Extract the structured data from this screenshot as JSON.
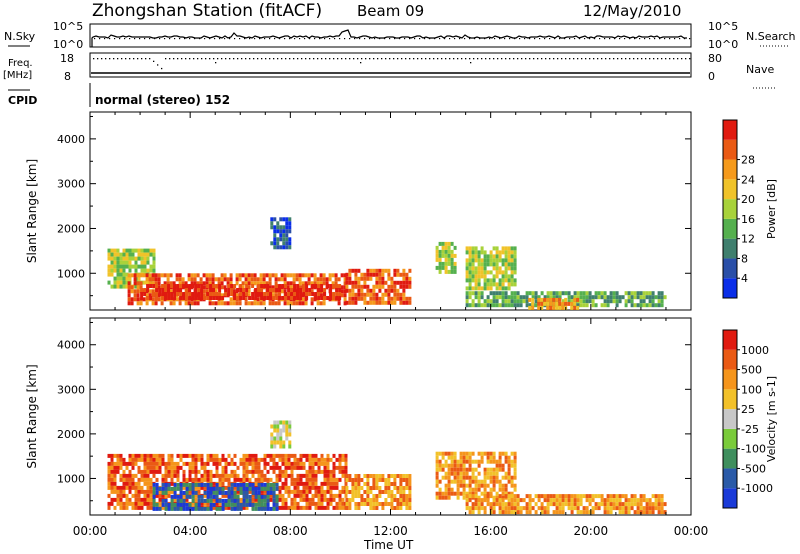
{
  "header": {
    "station": "Zhongshan Station (fitACF)",
    "beam": "Beam 09",
    "date": "12/May/2010"
  },
  "strip": {
    "nsky_label": "N.Sky",
    "nsky_ticks": [
      "10^5",
      "10^0"
    ],
    "nsearch_label": "N.Search",
    "nsearch_ticks": [
      "10^5",
      "10^0"
    ],
    "freq_label": "Freq.",
    "freq_unit": "[MHz]",
    "freq_ticks": [
      "18",
      "8"
    ],
    "nave_label": "Nave",
    "nave_ticks": [
      "80",
      "0"
    ],
    "cpid_label": "CPID",
    "cpid_value": "normal (stereo) 152"
  },
  "chart_data": [
    {
      "type": "heatmap",
      "name": "power",
      "ylabel": "Slant Range [km]",
      "yticks": [
        1000,
        2000,
        3000,
        4000
      ],
      "ylim": [
        180,
        4600
      ],
      "xlim": [
        0,
        24
      ],
      "colorbar": {
        "label": "Power [dB]",
        "ticks": [
          "4",
          "8",
          "12",
          "16",
          "20",
          "24",
          "28"
        ],
        "colors": [
          "#0a2ee8",
          "#2a4fa8",
          "#3f7f6e",
          "#55b04e",
          "#a8d23a",
          "#f0c32a",
          "#f59a1c",
          "#ea5a14",
          "#e01a10"
        ]
      },
      "echo_regions": [
        {
          "t0": 0.7,
          "t1": 2.6,
          "r0": 700,
          "r1": 1550,
          "level": 4
        },
        {
          "t0": 1.5,
          "t1": 10.2,
          "r0": 330,
          "r1": 1000,
          "level": 7
        },
        {
          "t0": 2.0,
          "t1": 10.0,
          "r0": 420,
          "r1": 760,
          "level": 8
        },
        {
          "t0": 10.2,
          "t1": 12.8,
          "r0": 350,
          "r1": 1100,
          "level": 7
        },
        {
          "t0": 7.2,
          "t1": 8.0,
          "r0": 1600,
          "r1": 2250,
          "level": 1
        },
        {
          "t0": 13.8,
          "t1": 14.6,
          "r0": 1000,
          "r1": 1700,
          "level": 4
        },
        {
          "t0": 15.0,
          "t1": 17.0,
          "r0": 700,
          "r1": 1600,
          "level": 4
        },
        {
          "t0": 15.0,
          "t1": 23.0,
          "r0": 250,
          "r1": 600,
          "level": 3
        },
        {
          "t0": 17.5,
          "t1": 19.5,
          "r0": 250,
          "r1": 450,
          "level": 6
        }
      ]
    },
    {
      "type": "heatmap",
      "name": "velocity",
      "ylabel": "Slant Range [km]",
      "xlabel": "Time UT",
      "xticks": [
        "00:00",
        "04:00",
        "08:00",
        "12:00",
        "16:00",
        "20:00",
        "00:00"
      ],
      "yticks": [
        1000,
        2000,
        3000,
        4000
      ],
      "ylim": [
        180,
        4600
      ],
      "xlim": [
        0,
        24
      ],
      "colorbar": {
        "label": "Velocity [m s-1]",
        "ticks": [
          "1000",
          "500",
          "100",
          "25",
          "-25",
          "-100",
          "-500",
          "-1000"
        ],
        "colors": [
          "#1a3ad8",
          "#2a5aa8",
          "#3f8f5e",
          "#7acb3a",
          "#c8c8c8",
          "#f2c12a",
          "#f5951c",
          "#ea5a14",
          "#e01a10"
        ]
      },
      "echo_regions": [
        {
          "t0": 0.7,
          "t1": 10.2,
          "r0": 330,
          "r1": 1550,
          "level": 7
        },
        {
          "t0": 2.5,
          "t1": 7.5,
          "r0": 350,
          "r1": 900,
          "level": 1
        },
        {
          "t0": 7.2,
          "t1": 8.0,
          "r0": 1700,
          "r1": 2300,
          "level": 4
        },
        {
          "t0": 10.2,
          "t1": 12.8,
          "r0": 300,
          "r1": 1100,
          "level": 6
        },
        {
          "t0": 13.8,
          "t1": 17.0,
          "r0": 600,
          "r1": 1600,
          "level": 6
        },
        {
          "t0": 15.0,
          "t1": 23.0,
          "r0": 250,
          "r1": 650,
          "level": 6
        }
      ]
    }
  ]
}
